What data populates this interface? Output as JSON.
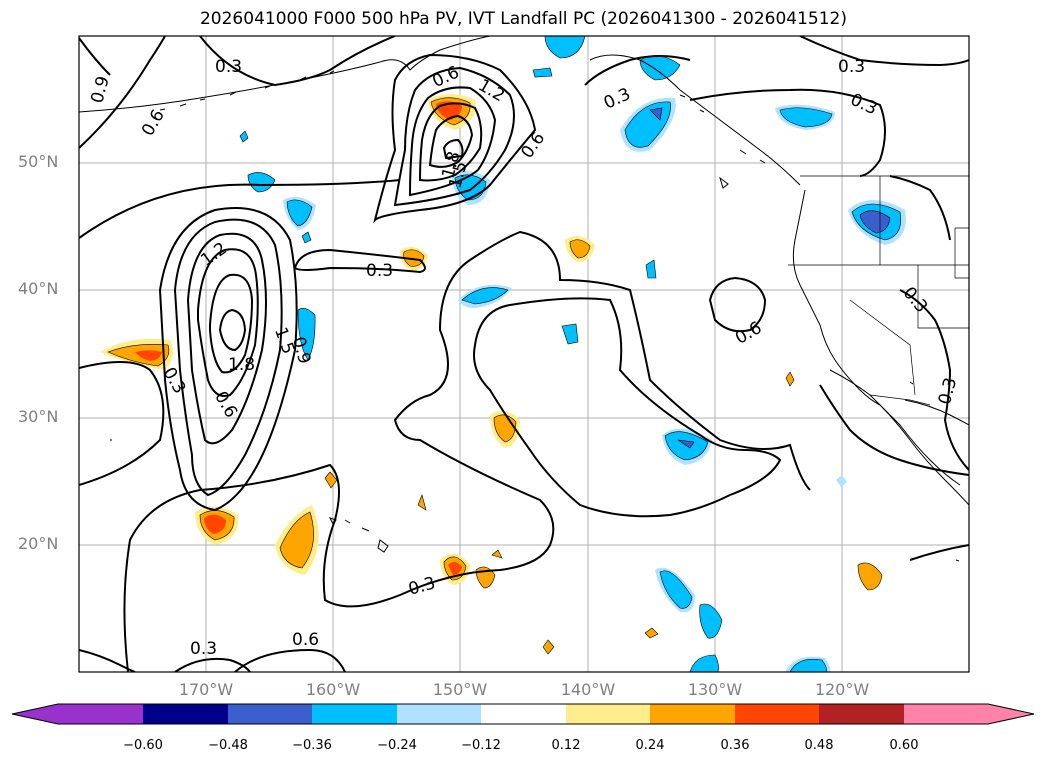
{
  "title": "2026041000 F000 500 hPa PV, IVT Landfall PC (2026041300 - 2026041512)",
  "map": {
    "lat_labels": [
      {
        "value": 50,
        "text": "50°N"
      },
      {
        "value": 40,
        "text": "40°N"
      },
      {
        "value": 30,
        "text": "30°N"
      },
      {
        "value": 20,
        "text": "20°N"
      }
    ],
    "lon_labels": [
      {
        "value": -170,
        "text": "170°W"
      },
      {
        "value": -160,
        "text": "160°W"
      },
      {
        "value": -150,
        "text": "150°W"
      },
      {
        "value": -140,
        "text": "140°W"
      },
      {
        "value": -130,
        "text": "130°W"
      },
      {
        "value": -120,
        "text": "120°W"
      }
    ],
    "extent": {
      "lon": [
        -180,
        -110
      ],
      "lat": [
        10,
        60
      ]
    },
    "grid": true,
    "contour_labels": [
      "0.3",
      "0.6",
      "0.9",
      "1.2",
      "1.5",
      "1.8",
      "0.3",
      "0.6",
      "0.9",
      "1.2",
      "1.5",
      "1.8",
      "0.3",
      "0.6",
      "0.6",
      "0.3",
      "0.3",
      "0.6",
      "0.3",
      "0.3",
      "0.3"
    ]
  },
  "colorbar": {
    "ticks": [
      "−0.60",
      "−0.48",
      "−0.36",
      "−0.24",
      "−0.12",
      "0.12",
      "0.24",
      "0.36",
      "0.48",
      "0.60"
    ],
    "colors": [
      "#9932cc",
      "#00008b",
      "#3a5fcd",
      "#00bfff",
      "#b0e2ff",
      "#ffffff",
      "#ffec8b",
      "#ffa500",
      "#ff4500",
      "#b22222",
      "#ff82ab"
    ]
  }
}
